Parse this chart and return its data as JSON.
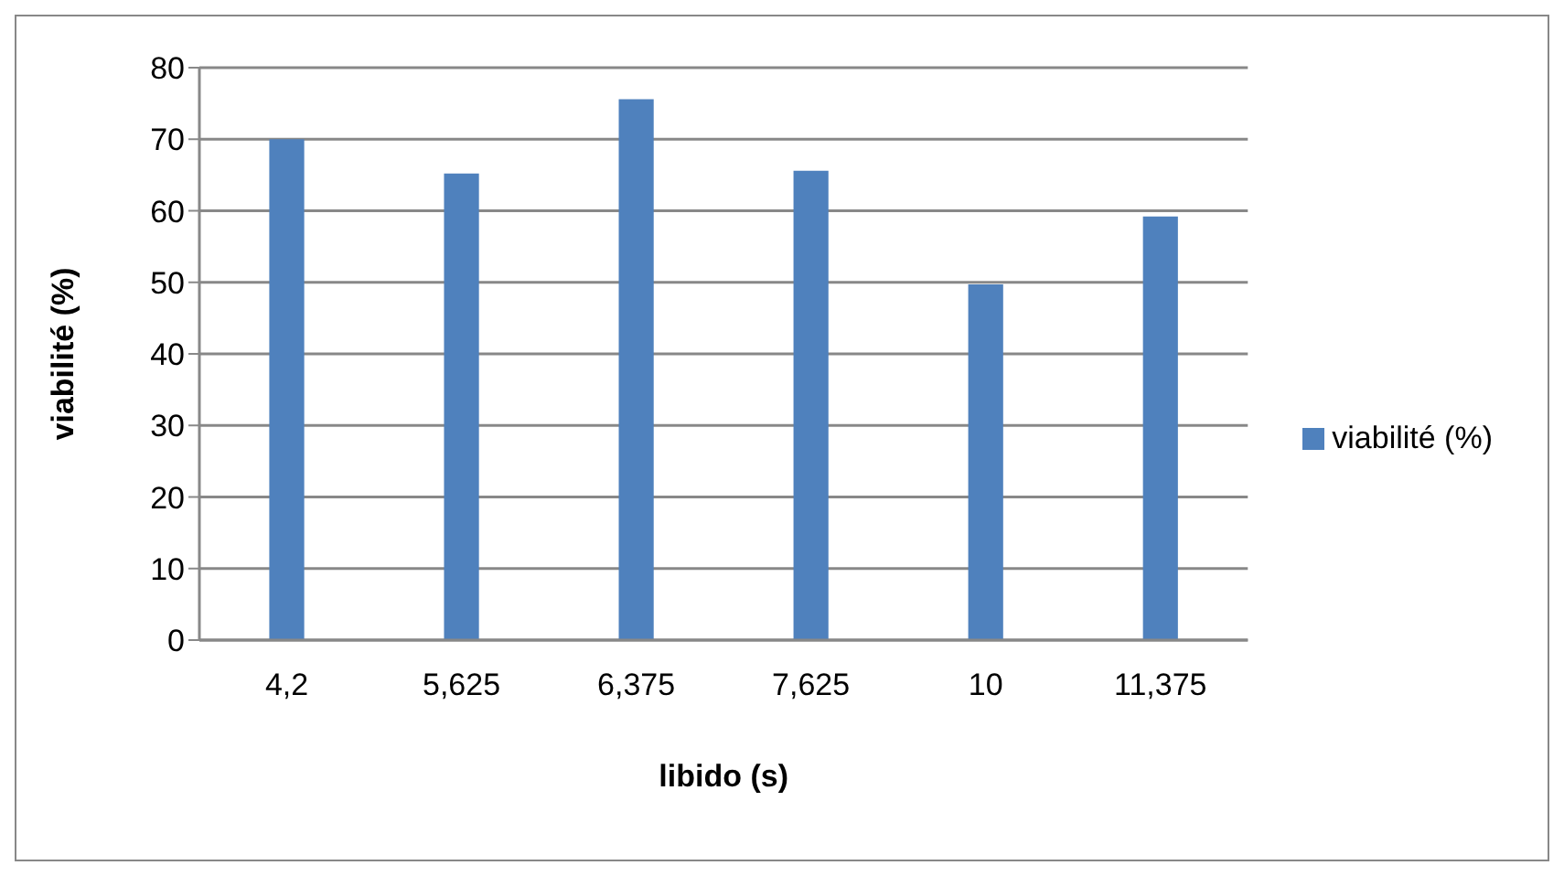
{
  "chart_data": {
    "type": "bar",
    "categories": [
      "4,2",
      "5,625",
      "6,375",
      "7,625",
      "10",
      "11,375"
    ],
    "series": [
      {
        "name": "viabilité (%)",
        "color": "#4f81bd",
        "values": [
          70,
          65.2,
          75.6,
          65.6,
          49.7,
          59.2
        ]
      }
    ],
    "xlabel": "libido (s)",
    "ylabel": "viabilité (%)",
    "ylim": [
      0,
      80
    ],
    "yticks": [
      0,
      10,
      20,
      30,
      40,
      50,
      60,
      70,
      80
    ],
    "grid": "y",
    "legend": "right"
  }
}
